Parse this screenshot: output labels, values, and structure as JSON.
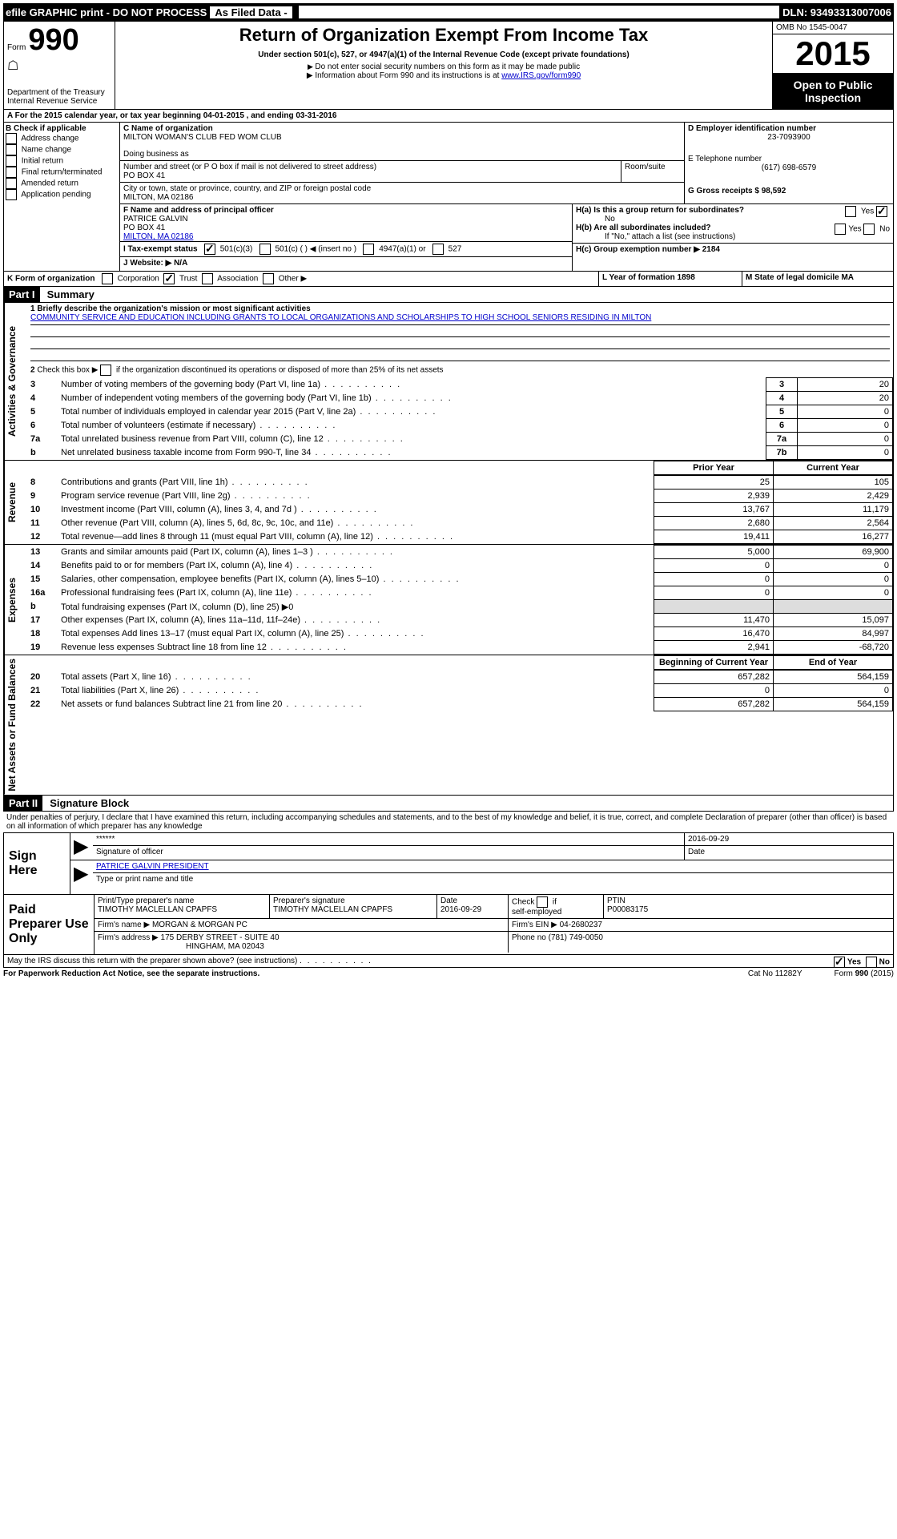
{
  "top_bar": {
    "efile": "efile GRAPHIC print - DO NOT PROCESS",
    "asfiled": "As Filed Data -",
    "dln": "DLN: 93493313007006"
  },
  "header": {
    "form_label": "Form",
    "form_num": "990",
    "dept": "Department of the Treasury",
    "irs": "Internal Revenue Service",
    "title": "Return of Organization Exempt From Income Tax",
    "subtitle": "Under section 501(c), 527, or 4947(a)(1) of the Internal Revenue Code (except private foundations)",
    "note1": "Do not enter social security numbers on this form as it may be made public",
    "note2": "Information about Form 990 and its instructions is at www.IRS.gov/form990",
    "omb": "OMB No 1545-0047",
    "year": "2015",
    "open": "Open to Public Inspection"
  },
  "section_a": {
    "line": "For the 2015 calendar year, or tax year beginning 04-01-2015    , and ending 03-31-2016"
  },
  "section_b": {
    "title": "Check if applicable",
    "opts": [
      "Address change",
      "Name change",
      "Initial return",
      "Final return/terminated",
      "Amended return",
      "Application pending"
    ]
  },
  "section_c": {
    "name_label": "C Name of organization",
    "name": "MILTON WOMAN'S CLUB FED WOM CLUB",
    "dba_label": "Doing business as",
    "addr_label": "Number and street (or P O  box if mail is not delivered to street address)",
    "room_label": "Room/suite",
    "addr": "PO BOX 41",
    "city_label": "City or town, state or province, country, and ZIP or foreign postal code",
    "city": "MILTON, MA  02186"
  },
  "section_d": {
    "label": "D Employer identification number",
    "value": "23-7093900"
  },
  "section_e": {
    "label": "E Telephone number",
    "value": "(617) 698-6579"
  },
  "section_g": {
    "label": "G Gross receipts $ 98,592"
  },
  "section_f": {
    "label": "F  Name and address of principal officer",
    "name": "PATRICE GALVIN",
    "addr": "PO BOX 41",
    "city": "MILTON, MA  02186"
  },
  "section_h": {
    "a": "H(a)  Is this a group return for subordinates?",
    "a_ans": "No",
    "b": "H(b)  Are all subordinates included?",
    "b_note": "If \"No,\" attach a list  (see instructions)",
    "c": "H(c)   Group exemption number ▶  2184"
  },
  "section_i": {
    "label": "I  Tax-exempt status",
    "opts": [
      "501(c)(3)",
      "501(c) (  ) ◀ (insert no )",
      "4947(a)(1) or",
      "527"
    ]
  },
  "section_j": {
    "label": "J  Website: ▶  N/A"
  },
  "section_k": {
    "label": "K Form of organization",
    "opts": [
      "Corporation",
      "Trust",
      "Association",
      "Other ▶"
    ]
  },
  "section_l": {
    "label": "L Year of formation  1898"
  },
  "section_m": {
    "label": "M State of legal domicile  MA"
  },
  "part1": {
    "header": "Part I",
    "title": "Summary",
    "line1_label": "1 Briefly describe the organization's mission or most significant activities",
    "line1_text": "COMMUNITY SERVICE AND EDUCATION INCLUDING GRANTS TO LOCAL ORGANIZATIONS AND SCHOLARSHIPS TO HIGH SCHOOL SENIORS RESIDING IN MILTON",
    "line2": "2  Check this box ▶       if the organization discontinued its operations or disposed of more than 25% of its net assets",
    "rows_gov": [
      {
        "n": "3",
        "label": "Number of voting members of the governing body (Part VI, line 1a)",
        "val": "20"
      },
      {
        "n": "4",
        "label": "Number of independent voting members of the governing body (Part VI, line 1b)",
        "val": "20"
      },
      {
        "n": "5",
        "label": "Total number of individuals employed in calendar year 2015 (Part V, line 2a)",
        "val": "0"
      },
      {
        "n": "6",
        "label": "Total number of volunteers (estimate if necessary)",
        "val": "0"
      },
      {
        "n": "7a",
        "label": "Total unrelated business revenue from Part VIII, column (C), line 12",
        "val": "0"
      },
      {
        "n2": "b",
        "label": "Net unrelated business taxable income from Form 990-T, line 34",
        "n": "7b",
        "val": "0"
      }
    ],
    "col_prior": "Prior Year",
    "col_current": "Current Year",
    "rows_rev": [
      {
        "n": "8",
        "label": "Contributions and grants (Part VIII, line 1h)",
        "prior": "25",
        "cur": "105"
      },
      {
        "n": "9",
        "label": "Program service revenue (Part VIII, line 2g)",
        "prior": "2,939",
        "cur": "2,429"
      },
      {
        "n": "10",
        "label": "Investment income (Part VIII, column (A), lines 3, 4, and 7d )",
        "prior": "13,767",
        "cur": "11,179"
      },
      {
        "n": "11",
        "label": "Other revenue (Part VIII, column (A), lines 5, 6d, 8c, 9c, 10c, and 11e)",
        "prior": "2,680",
        "cur": "2,564"
      },
      {
        "n": "12",
        "label": "Total revenue—add lines 8 through 11 (must equal Part VIII, column (A), line 12)",
        "prior": "19,411",
        "cur": "16,277"
      }
    ],
    "rows_exp": [
      {
        "n": "13",
        "label": "Grants and similar amounts paid (Part IX, column (A), lines 1–3 )",
        "prior": "5,000",
        "cur": "69,900"
      },
      {
        "n": "14",
        "label": "Benefits paid to or for members (Part IX, column (A), line 4)",
        "prior": "0",
        "cur": "0"
      },
      {
        "n": "15",
        "label": "Salaries, other compensation, employee benefits (Part IX, column (A), lines 5–10)",
        "prior": "0",
        "cur": "0"
      },
      {
        "n": "16a",
        "label": "Professional fundraising fees (Part IX, column (A), line 11e)",
        "prior": "0",
        "cur": "0"
      },
      {
        "n": "b",
        "label": "Total fundraising expenses (Part IX, column (D), line 25) ▶0",
        "prior": "",
        "cur": "",
        "grey": true
      },
      {
        "n": "17",
        "label": "Other expenses (Part IX, column (A), lines 11a–11d, 11f–24e)",
        "prior": "11,470",
        "cur": "15,097"
      },
      {
        "n": "18",
        "label": "Total expenses  Add lines 13–17 (must equal Part IX, column (A), line 25)",
        "prior": "16,470",
        "cur": "84,997"
      },
      {
        "n": "19",
        "label": "Revenue less expenses  Subtract line 18 from line 12",
        "prior": "2,941",
        "cur": "-68,720"
      }
    ],
    "col_beg": "Beginning of Current Year",
    "col_end": "End of Year",
    "rows_net": [
      {
        "n": "20",
        "label": "Total assets (Part X, line 16)",
        "prior": "657,282",
        "cur": "564,159"
      },
      {
        "n": "21",
        "label": "Total liabilities (Part X, line 26)",
        "prior": "0",
        "cur": "0"
      },
      {
        "n": "22",
        "label": "Net assets or fund balances  Subtract line 21 from line 20",
        "prior": "657,282",
        "cur": "564,159"
      }
    ],
    "side_gov": "Activities & Governance",
    "side_rev": "Revenue",
    "side_exp": "Expenses",
    "side_net": "Net Assets or Fund Balances"
  },
  "part2": {
    "header": "Part II",
    "title": "Signature Block",
    "decl": "Under penalties of perjury, I declare that I have examined this return, including accompanying schedules and statements, and to the best of my knowledge and belief, it is true, correct, and complete  Declaration of preparer (other than officer) is based on all information of which preparer has any knowledge"
  },
  "sign": {
    "label": "Sign Here",
    "stars": "******",
    "sig_label": "Signature of officer",
    "date": "2016-09-29",
    "date_label": "Date",
    "name": "PATRICE GALVIN PRESIDENT",
    "name_label": "Type or print name and title"
  },
  "preparer": {
    "label": "Paid Preparer Use Only",
    "cols": [
      "Print/Type preparer's name",
      "Preparer's signature",
      "Date",
      "",
      "PTIN"
    ],
    "name": "TIMOTHY MACLELLAN CPAPFS",
    "sig": "TIMOTHY MACLELLAN CPAPFS",
    "date": "2016-09-29",
    "check": "Check       if self-employed",
    "ptin": "P00083175",
    "firm_label": "Firm's name      ▶",
    "firm": "MORGAN & MORGAN PC",
    "ein_label": "Firm's EIN ▶",
    "ein": "04-2680237",
    "addr_label": "Firm's address ▶",
    "addr": "175 DERBY STREET - SUITE 40",
    "city": "HINGHAM, MA  02043",
    "phone_label": "Phone no ",
    "phone": "(781) 749-0050"
  },
  "footer": {
    "discuss": "May the IRS discuss this return with the preparer shown above? (see instructions)",
    "paperwork": "For Paperwork Reduction Act Notice, see the separate instructions.",
    "cat": "Cat No  11282Y",
    "form": "Form 990 (2015)"
  }
}
